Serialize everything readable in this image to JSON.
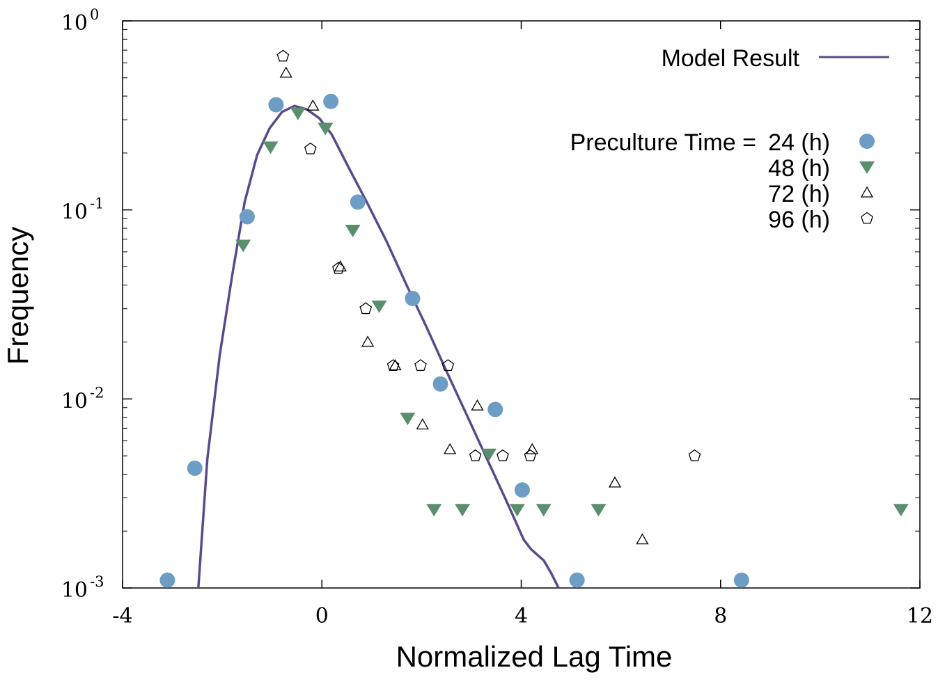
{
  "chart_data": {
    "type": "scatter",
    "xlabel": "Normalized Lag Time",
    "ylabel": "Frequency",
    "xlim": [
      -4,
      12
    ],
    "ylim": [
      0.001,
      1
    ],
    "yscale": "log",
    "x_ticks": [
      -4,
      0,
      4,
      8,
      12
    ],
    "y_ticks": [
      {
        "value": 1,
        "base": "10",
        "exp": "0"
      },
      {
        "value": 0.1,
        "base": "10",
        "exp": "-1"
      },
      {
        "value": 0.01,
        "base": "10",
        "exp": "-2"
      },
      {
        "value": 0.001,
        "base": "10",
        "exp": "-3"
      }
    ],
    "grid": false,
    "legend_position": "top-right",
    "legend_title": "Preculture Time =",
    "model": {
      "name": "Model Result",
      "color": "#5b4a8b",
      "x": [
        -2.48,
        -2.3,
        -2.05,
        -1.8,
        -1.55,
        -1.3,
        -1.05,
        -0.8,
        -0.55,
        -0.3,
        -0.05,
        0.2,
        0.55,
        0.9,
        1.3,
        1.7,
        2.1,
        2.5,
        2.9,
        3.3,
        3.7,
        4.05,
        4.2,
        4.45,
        4.6,
        4.75
      ],
      "y": [
        0.001,
        0.0048,
        0.017,
        0.045,
        0.11,
        0.195,
        0.27,
        0.33,
        0.355,
        0.34,
        0.305,
        0.25,
        0.165,
        0.11,
        0.068,
        0.04,
        0.024,
        0.014,
        0.0083,
        0.0049,
        0.0029,
        0.0018,
        0.0016,
        0.0014,
        0.0012,
        0.001
      ]
    },
    "series": [
      {
        "name": "24 (h)",
        "marker": "circle",
        "color": "#6d9dc5",
        "x": [
          -3.1,
          -2.55,
          -1.5,
          -0.92,
          0.18,
          0.72,
          1.82,
          2.38,
          3.48,
          4.02,
          5.12,
          8.42
        ],
        "y": [
          0.0011,
          0.0043,
          0.092,
          0.36,
          0.375,
          0.11,
          0.034,
          0.012,
          0.0088,
          0.0033,
          0.0011,
          0.0011
        ]
      },
      {
        "name": "48 (h)",
        "marker": "triangle-down",
        "color": "#5a8f6d",
        "x": [
          -1.58,
          -1.03,
          -0.48,
          0.07,
          0.62,
          1.15,
          1.72,
          2.25,
          2.82,
          3.35,
          3.92,
          4.45,
          5.55,
          11.62
        ],
        "y": [
          0.065,
          0.215,
          0.325,
          0.27,
          0.078,
          0.031,
          0.0079,
          0.0026,
          0.0026,
          0.0051,
          0.0026,
          0.0026,
          0.0026,
          0.0026
        ]
      },
      {
        "name": "72 (h)",
        "marker": "triangle-open",
        "color": "#000000",
        "x": [
          -0.72,
          -0.18,
          0.37,
          0.92,
          1.47,
          2.02,
          2.57,
          3.12,
          4.22,
          5.88,
          6.43
        ],
        "y": [
          0.53,
          0.355,
          0.05,
          0.02,
          0.015,
          0.0073,
          0.0054,
          0.0092,
          0.0054,
          0.0036,
          0.0018
        ]
      },
      {
        "name": "96 (h)",
        "marker": "pentagon-open",
        "color": "#000000",
        "x": [
          -0.78,
          -0.23,
          0.33,
          0.88,
          1.43,
          1.98,
          2.53,
          3.08,
          3.63,
          4.18,
          7.48
        ],
        "y": [
          0.65,
          0.21,
          0.049,
          0.03,
          0.015,
          0.015,
          0.015,
          0.005,
          0.005,
          0.005,
          0.005
        ]
      }
    ]
  }
}
